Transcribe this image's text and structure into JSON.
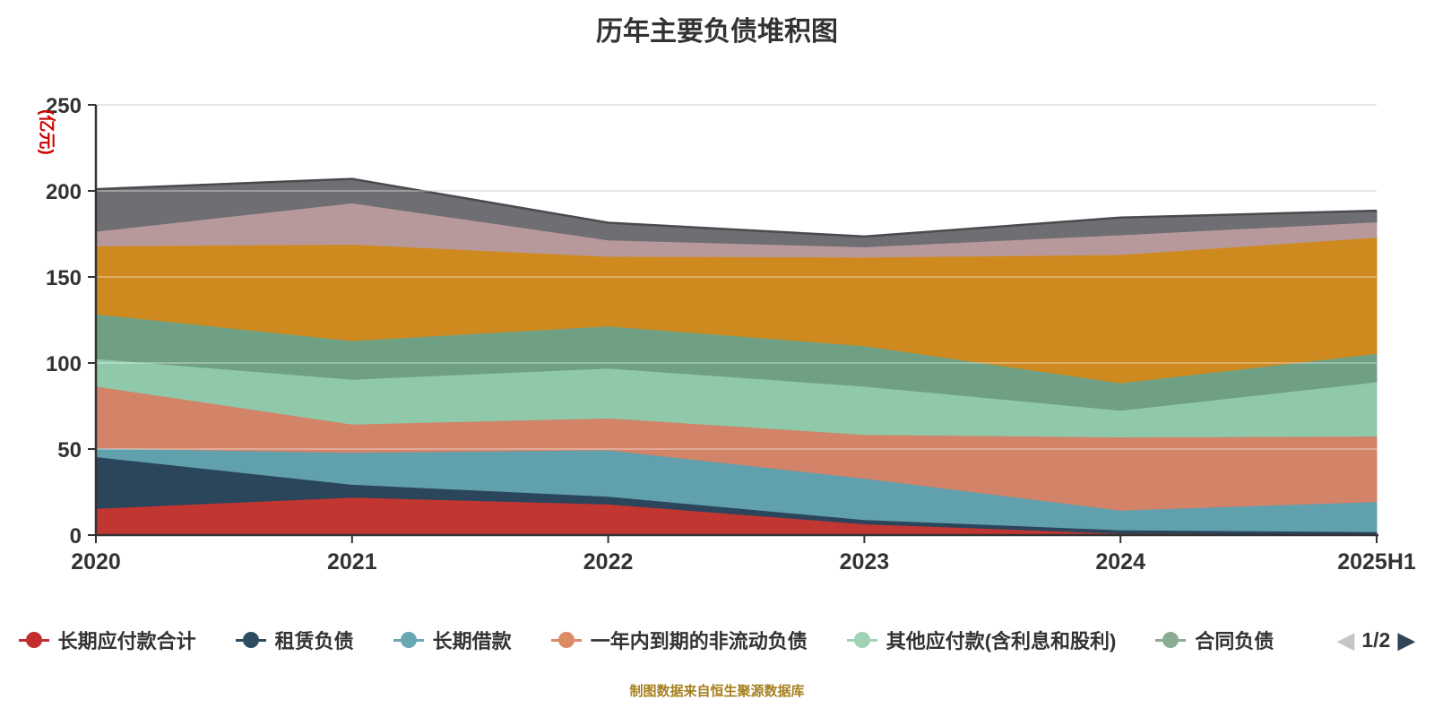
{
  "title": {
    "text": "历年主要负债堆积图"
  },
  "y_axis": {
    "name": "(亿元)",
    "ticks": [
      0,
      50,
      100,
      150,
      200,
      250
    ],
    "max": 250
  },
  "x_axis": {
    "categories": [
      "2020",
      "2021",
      "2022",
      "2023",
      "2024",
      "2025H1"
    ]
  },
  "chart_data": {
    "type": "area",
    "stacked": true,
    "title": "历年主要负债堆积图",
    "x": [
      "2020",
      "2021",
      "2022",
      "2023",
      "2024",
      "2025H1"
    ],
    "ylim": [
      0,
      250
    ],
    "y_unit": "亿元",
    "grid": true,
    "legend_position": "bottom",
    "series": [
      {
        "name": "长期应付款合计",
        "color": "#c23632",
        "values": [
          15.5,
          22,
          18,
          6.5,
          1,
          0.5
        ],
        "in_visible_legend": true
      },
      {
        "name": "租赁负债",
        "color": "#2b455b",
        "values": [
          30,
          7.5,
          4.5,
          2.5,
          2,
          1.5
        ],
        "in_visible_legend": true
      },
      {
        "name": "长期借款",
        "color": "#61a0ad",
        "values": [
          5,
          18.5,
          27,
          24,
          11.5,
          17.5
        ],
        "in_visible_legend": true
      },
      {
        "name": "一年内到期的非流动负债",
        "color": "#d28368",
        "values": [
          36,
          16.5,
          18.5,
          25.5,
          42.5,
          38
        ],
        "in_visible_legend": true
      },
      {
        "name": "其他应付款(含利息和股利)",
        "color": "#8fc9aa",
        "values": [
          16,
          26,
          29,
          28,
          15.5,
          31.5
        ],
        "in_visible_legend": true
      },
      {
        "name": "合同负债",
        "color": "#70a083",
        "values": [
          26,
          22.5,
          24.5,
          23.5,
          16,
          16.5
        ],
        "in_visible_legend": true
      },
      {
        "name": "",
        "color": "#cf8a1f",
        "values": [
          39.5,
          56,
          40.5,
          51.5,
          74.5,
          67.5
        ],
        "in_visible_legend": false
      },
      {
        "name": "",
        "color": "#b8999b",
        "values": [
          8.5,
          24,
          9.5,
          6,
          11.5,
          9
        ],
        "in_visible_legend": false
      },
      {
        "name": "",
        "color": "#6e6e73",
        "values": [
          24.5,
          14,
          10,
          6,
          10,
          6.5
        ],
        "in_visible_legend": false
      }
    ]
  },
  "legend": {
    "items": [
      {
        "label": "长期应付款合计",
        "color": "#c32f2f"
      },
      {
        "label": "租赁负债",
        "color": "#2e4d63"
      },
      {
        "label": "长期借款",
        "color": "#6aa7b4"
      },
      {
        "label": "一年内到期的非流动负债",
        "color": "#dd8a66"
      },
      {
        "label": "其他应付款(含利息和股利)",
        "color": "#a0d2b6"
      },
      {
        "label": "合同负债",
        "color": "#8aab94"
      }
    ],
    "pager": {
      "label": "1/2"
    }
  },
  "footer": {
    "text": "制图数据来自恒生聚源数据库"
  },
  "colors": {
    "title": "#333333",
    "axis_line": "#333333",
    "axis_label": "#333333",
    "y_name": "#cc0000",
    "gridline": "#cccccc",
    "gridline_overlay": "rgba(255,255,255,0.42)",
    "top_edge_stroke": "#4a4a4f",
    "footer_text": "#a5801f",
    "pager_prev": "#c5c5c5",
    "pager_next": "#2f4458",
    "pager_text": "#333333"
  }
}
